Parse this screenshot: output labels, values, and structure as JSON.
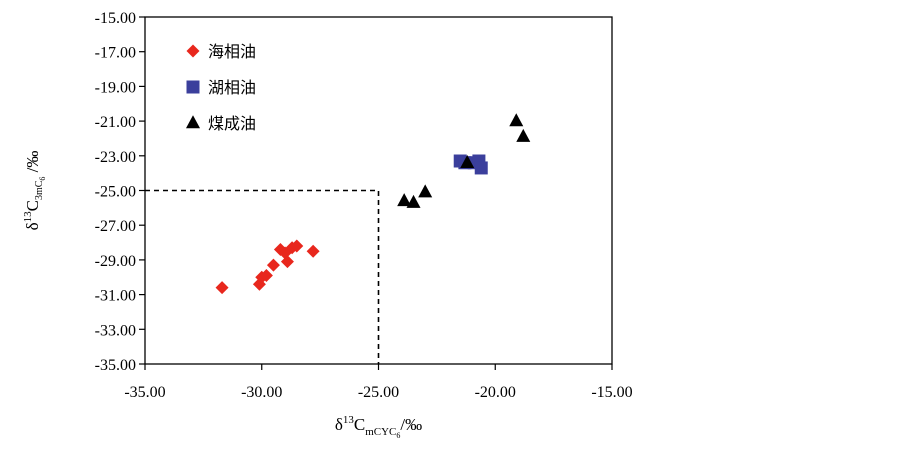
{
  "chart_data": {
    "type": "scatter",
    "x_axis": {
      "title_prefix": "δ",
      "title_sup": "13",
      "title_main": "C",
      "title_sub": "mCYC",
      "title_sub2": "6",
      "title_suffix": "/‰",
      "range": [
        -35,
        -15
      ],
      "ticks": [
        -35,
        -30,
        -25,
        -20,
        -15
      ],
      "tick_labels": [
        "-35.00",
        "-30.00",
        "-25.00",
        "-20.00",
        "-15.00"
      ]
    },
    "y_axis": {
      "title_prefix": "δ",
      "title_sup": "13",
      "title_main": "C",
      "title_sub": "3mC",
      "title_sub2": "6",
      "title_suffix": " /‰",
      "range": [
        -35,
        -15
      ],
      "ticks": [
        -35,
        -33,
        -31,
        -29,
        -27,
        -25,
        -23,
        -21,
        -19,
        -17,
        -15
      ],
      "tick_labels": [
        "-35.00",
        "-33.00",
        "-31.00",
        "-29.00",
        "-27.00",
        "-25.00",
        "-23.00",
        "-21.00",
        "-19.00",
        "-17.00",
        "-15.00"
      ]
    },
    "grid": false,
    "legend_position": "top-left",
    "reference_lines": [
      {
        "style": "dashed",
        "points": [
          [
            -35,
            -25
          ],
          [
            -25,
            -25
          ],
          [
            -25,
            -35
          ]
        ]
      }
    ],
    "series": [
      {
        "name": "海相油",
        "marker": "diamond",
        "color": "#e8271d",
        "points": [
          [
            -31.7,
            -30.6
          ],
          [
            -30.1,
            -30.4
          ],
          [
            -30.0,
            -30.0
          ],
          [
            -29.8,
            -29.9
          ],
          [
            -29.5,
            -29.3
          ],
          [
            -29.2,
            -28.4
          ],
          [
            -29.0,
            -28.6
          ],
          [
            -28.9,
            -29.1
          ],
          [
            -28.7,
            -28.3
          ],
          [
            -28.5,
            -28.2
          ],
          [
            -27.8,
            -28.5
          ]
        ]
      },
      {
        "name": "湖相油",
        "marker": "square",
        "color": "#3b3f9c",
        "points": [
          [
            -21.5,
            -23.3
          ],
          [
            -21.3,
            -23.4
          ],
          [
            -20.9,
            -23.4
          ],
          [
            -20.7,
            -23.3
          ],
          [
            -20.6,
            -23.7
          ]
        ]
      },
      {
        "name": "煤成油",
        "marker": "triangle",
        "color": "#000000",
        "points": [
          [
            -23.9,
            -25.6
          ],
          [
            -23.5,
            -25.7
          ],
          [
            -23.0,
            -25.1
          ],
          [
            -21.2,
            -23.4
          ],
          [
            -19.1,
            -21.0
          ],
          [
            -18.8,
            -21.9
          ]
        ]
      }
    ]
  }
}
